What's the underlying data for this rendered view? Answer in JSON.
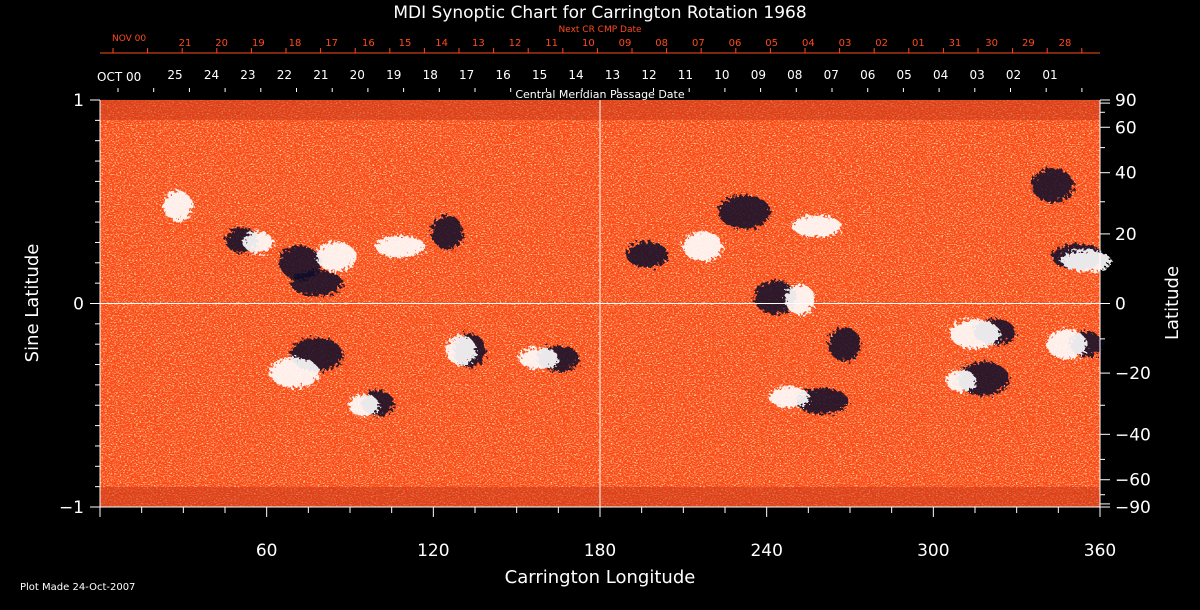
{
  "chart_data": {
    "type": "heatmap",
    "title": "MDI Synoptic Chart for Carrington Rotation 1968",
    "xlabel": "Carrington Longitude",
    "ylabel_left": "Sine Latitude",
    "ylabel_right": "Latitude",
    "top_red_label": "Next CR CMP Date",
    "top_red_corner": "NOV 00",
    "top_white_corner": "OCT 00",
    "top_bottom_label": "Central Meridian Passage Date",
    "footer": "Plot Made 24-Oct-2007",
    "xlim": [
      0,
      360
    ],
    "ylim": [
      -1,
      1
    ],
    "x_ticks": [
      60,
      120,
      180,
      240,
      300,
      360
    ],
    "x_tick_labels": [
      "60",
      "120",
      "180",
      "240",
      "300",
      "360"
    ],
    "y_ticks_left": [
      1,
      0,
      -1
    ],
    "y_tick_labels_left": [
      "1",
      "0",
      "−1"
    ],
    "lat_ticks": [
      90,
      60,
      40,
      20,
      0,
      -20,
      -40,
      -60,
      -90
    ],
    "lat_tick_labels": [
      "90",
      "60",
      "40",
      "20",
      "0",
      "−20",
      "−40",
      "−60",
      "−90"
    ],
    "red_date_labels": [
      "21",
      "20",
      "19",
      "18",
      "17",
      "16",
      "15",
      "14",
      "13",
      "12",
      "11",
      "10",
      "09",
      "08",
      "07",
      "06",
      "05",
      "04",
      "03",
      "02",
      "01",
      "31",
      "30",
      "29",
      "28"
    ],
    "white_date_labels": [
      "25",
      "24",
      "23",
      "22",
      "21",
      "20",
      "19",
      "18",
      "17",
      "16",
      "15",
      "14",
      "13",
      "12",
      "11",
      "10",
      "09",
      "08",
      "07",
      "06",
      "05",
      "04",
      "03",
      "02",
      "01"
    ],
    "crosshair": {
      "longitude": 180,
      "sine_latitude": 0
    },
    "grid": false,
    "colors": {
      "background": "#000000",
      "field": "#ff4a14",
      "positive": "#ffffff",
      "negative": "#0a0a2a",
      "next_cr": "#ff4a1c"
    },
    "positive_regions": [
      {
        "lon": 57,
        "slat": 0.3
      },
      {
        "lon": 85,
        "slat": 0.23
      },
      {
        "lon": 108,
        "slat": 0.28
      },
      {
        "lon": 130,
        "slat": -0.23
      },
      {
        "lon": 158,
        "slat": -0.27
      },
      {
        "lon": 70,
        "slat": -0.34
      },
      {
        "lon": 95,
        "slat": -0.5
      },
      {
        "lon": 217,
        "slat": 0.28
      },
      {
        "lon": 258,
        "slat": 0.38
      },
      {
        "lon": 252,
        "slat": 0.02
      },
      {
        "lon": 248,
        "slat": -0.46
      },
      {
        "lon": 315,
        "slat": -0.15
      },
      {
        "lon": 310,
        "slat": -0.38
      },
      {
        "lon": 348,
        "slat": -0.2
      },
      {
        "lon": 355,
        "slat": 0.21
      },
      {
        "lon": 28,
        "slat": 0.48
      }
    ],
    "negative_regions": [
      {
        "lon": 51,
        "slat": 0.31
      },
      {
        "lon": 72,
        "slat": 0.2
      },
      {
        "lon": 78,
        "slat": 0.1
      },
      {
        "lon": 133,
        "slat": -0.23
      },
      {
        "lon": 165,
        "slat": -0.27
      },
      {
        "lon": 78,
        "slat": -0.25
      },
      {
        "lon": 100,
        "slat": -0.49
      },
      {
        "lon": 243,
        "slat": 0.03
      },
      {
        "lon": 260,
        "slat": -0.48
      },
      {
        "lon": 268,
        "slat": -0.2
      },
      {
        "lon": 322,
        "slat": -0.14
      },
      {
        "lon": 318,
        "slat": -0.37
      },
      {
        "lon": 355,
        "slat": -0.2
      },
      {
        "lon": 343,
        "slat": 0.58
      },
      {
        "lon": 352,
        "slat": 0.23
      },
      {
        "lon": 125,
        "slat": 0.35
      },
      {
        "lon": 197,
        "slat": 0.24
      },
      {
        "lon": 232,
        "slat": 0.45
      }
    ]
  }
}
